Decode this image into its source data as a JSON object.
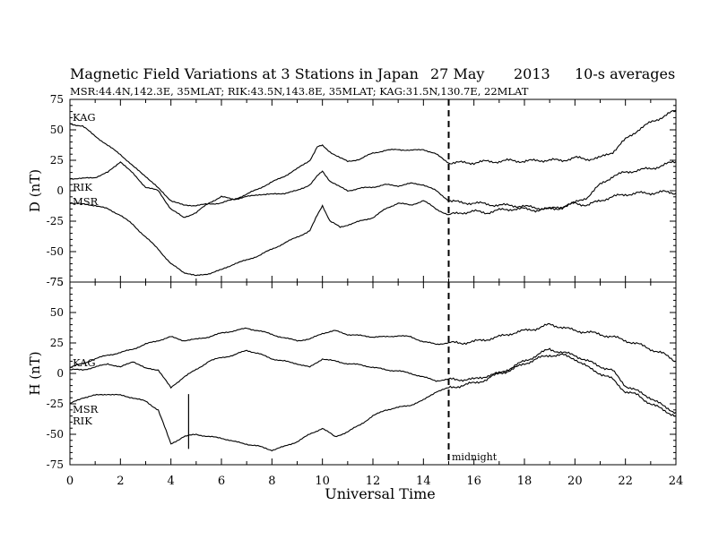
{
  "title": {
    "main": "Magnetic Field Variations at 3 Stations in Japan",
    "date": "27 May",
    "year": "2013",
    "avg": "10-s averages",
    "subtitle": "MSR:44.4N,142.3E, 35MLAT;  RIK:43.5N,143.8E, 35MLAT;  KAG:31.5N,130.7E, 22MLAT"
  },
  "chart_data": [
    {
      "type": "line",
      "panel": "D",
      "ylabel": "D (nT)",
      "ylim": [
        -75,
        75
      ],
      "yticks": [
        "75",
        "50",
        "25",
        "0",
        "-25",
        "-50",
        "-75"
      ],
      "xlim": [
        0,
        24
      ],
      "series": [
        {
          "name": "KAG",
          "label": "KAG",
          "x": [
            0,
            0.5,
            1,
            1.5,
            2,
            2.5,
            3,
            3.5,
            4,
            4.5,
            5,
            5.5,
            6,
            6.5,
            7,
            7.5,
            8,
            8.5,
            9,
            9.5,
            9.8,
            10,
            10.3,
            10.7,
            11,
            11.5,
            12,
            12.5,
            13,
            13.5,
            14,
            14.5,
            15,
            15.5,
            16,
            16.5,
            17,
            17.5,
            18,
            18.5,
            19,
            19.5,
            20,
            20.5,
            21,
            21.5,
            22,
            22.5,
            23,
            23.5,
            24
          ],
          "y": [
            55,
            53,
            45,
            37,
            30,
            20,
            12,
            2,
            -8,
            -12,
            -12,
            -11,
            -10,
            -7,
            -3,
            2,
            7,
            12,
            18,
            25,
            36,
            37,
            32,
            27,
            24,
            26,
            31,
            33,
            34,
            33,
            34,
            30,
            23,
            23,
            23,
            24,
            24,
            25,
            24,
            25,
            25,
            25,
            27,
            26,
            27,
            32,
            42,
            50,
            56,
            61,
            66
          ]
        },
        {
          "name": "RIK",
          "label": "RIK",
          "x": [
            0,
            0.5,
            1,
            1.5,
            2,
            2.5,
            3,
            3.5,
            4,
            4.5,
            5,
            5.5,
            6,
            6.5,
            7,
            7.5,
            8,
            8.5,
            9,
            9.5,
            9.8,
            10,
            10.3,
            10.7,
            11,
            11.5,
            12,
            12.5,
            13,
            13.5,
            14,
            14.5,
            15,
            15.5,
            16,
            16.5,
            17,
            17.5,
            18,
            18.5,
            19,
            19.5,
            20,
            20.5,
            21,
            21.5,
            22,
            22.5,
            23,
            23.5,
            24
          ],
          "y": [
            10,
            10,
            11,
            15,
            24,
            14,
            3,
            0,
            -15,
            -22,
            -18,
            -10,
            -5,
            -7,
            -5,
            -3,
            -3,
            -2,
            0,
            5,
            12,
            16,
            8,
            3,
            0,
            2,
            3,
            5,
            4,
            6,
            5,
            0,
            -8,
            -10,
            -10,
            -11,
            -12,
            -12,
            -13,
            -14,
            -15,
            -13,
            -10,
            -5,
            5,
            12,
            15,
            17,
            18,
            21,
            24
          ]
        },
        {
          "name": "MSR",
          "label": "MSR",
          "x": [
            0,
            0.5,
            1,
            1.5,
            2,
            2.5,
            3,
            3.5,
            4,
            4.5,
            4.7,
            5,
            5.5,
            6,
            6.5,
            7,
            7.5,
            8,
            8.5,
            9,
            9.5,
            9.8,
            10,
            10.3,
            10.7,
            11,
            11.5,
            12,
            12.5,
            13,
            13.5,
            14,
            14.5,
            15,
            15.5,
            16,
            16.5,
            17,
            17.5,
            18,
            18.5,
            19,
            19.5,
            20,
            20.5,
            21,
            21.5,
            22,
            22.5,
            23,
            23.5,
            24
          ],
          "y": [
            -10,
            -11,
            -12,
            -15,
            -20,
            -28,
            -38,
            -48,
            -60,
            -67,
            -68,
            -70,
            -68,
            -65,
            -60,
            -57,
            -53,
            -48,
            -43,
            -38,
            -33,
            -20,
            -12,
            -25,
            -30,
            -28,
            -25,
            -22,
            -15,
            -10,
            -12,
            -8,
            -15,
            -20,
            -18,
            -17,
            -18,
            -16,
            -15,
            -15,
            -16,
            -15,
            -14,
            -10,
            -12,
            -8,
            -5,
            -3,
            -2,
            -2,
            -1,
            -2
          ]
        }
      ]
    },
    {
      "type": "line",
      "panel": "H",
      "ylabel": "H (nT)",
      "ylim": [
        -75,
        75
      ],
      "yticks": [
        "75",
        "50",
        "25",
        "0",
        "-25",
        "-50",
        "-75"
      ],
      "xlim": [
        0,
        24
      ],
      "xticks": [
        "0",
        "2",
        "4",
        "6",
        "8",
        "10",
        "12",
        "14",
        "16",
        "18",
        "20",
        "22",
        "24"
      ],
      "xlabel": "Universal Time",
      "annotation": "midnight",
      "midnight_ut": 15,
      "series": [
        {
          "name": "KAG",
          "label": "KAG",
          "x": [
            0,
            0.5,
            1,
            1.5,
            2,
            2.5,
            3,
            3.5,
            4,
            4.5,
            5,
            5.5,
            6,
            6.5,
            7,
            7.5,
            8,
            8.5,
            9,
            9.5,
            10,
            10.5,
            11,
            11.5,
            12,
            12.5,
            13,
            13.5,
            14,
            14.5,
            15,
            15.5,
            16,
            16.5,
            17,
            17.5,
            18,
            18.5,
            19,
            19.5,
            20,
            20.5,
            21,
            21.5,
            22,
            22.5,
            23,
            23.5,
            24
          ],
          "y": [
            5,
            8,
            12,
            15,
            17,
            20,
            24,
            27,
            30,
            27,
            28,
            30,
            33,
            35,
            37,
            35,
            32,
            29,
            27,
            28,
            33,
            35,
            32,
            31,
            30,
            30,
            31,
            30,
            26,
            24,
            25,
            25,
            26,
            28,
            30,
            33,
            35,
            37,
            40,
            38,
            35,
            34,
            32,
            30,
            27,
            24,
            20,
            16,
            10
          ]
        },
        {
          "name": "MSR",
          "label": "MSR",
          "x": [
            0,
            0.5,
            1,
            1.5,
            2,
            2.5,
            3,
            3.5,
            4,
            4.5,
            5,
            5.5,
            6,
            6.5,
            7,
            7.5,
            8,
            8.5,
            9,
            9.5,
            10,
            10.5,
            11,
            11.5,
            12,
            12.5,
            13,
            13.5,
            14,
            14.5,
            15,
            15.5,
            16,
            16.5,
            17,
            17.5,
            18,
            18.5,
            19,
            19.5,
            20,
            20.5,
            21,
            21.5,
            22,
            22.5,
            23,
            23.5,
            24
          ],
          "y": [
            3,
            3,
            5,
            8,
            5,
            10,
            4,
            3,
            -12,
            -3,
            3,
            10,
            13,
            15,
            19,
            16,
            12,
            10,
            8,
            5,
            12,
            10,
            8,
            7,
            5,
            3,
            2,
            0,
            -3,
            -6,
            -5,
            -5,
            -5,
            -2,
            0,
            5,
            10,
            15,
            20,
            17,
            15,
            10,
            6,
            2,
            -10,
            -15,
            -20,
            -27,
            -32
          ]
        },
        {
          "name": "RIK",
          "label": "RIK",
          "x": [
            0,
            0.5,
            1,
            1.5,
            2,
            2.5,
            3,
            3.5,
            4,
            4.5,
            5,
            5.5,
            6,
            6.5,
            7,
            7.5,
            8,
            8.5,
            9,
            9.5,
            10,
            10.5,
            11,
            11.5,
            12,
            12.5,
            13,
            13.5,
            14,
            14.5,
            15,
            15.5,
            16,
            16.5,
            17,
            17.5,
            18,
            18.5,
            19,
            19.5,
            20,
            20.5,
            21,
            21.5,
            22,
            22.5,
            23,
            23.5,
            24
          ],
          "y": [
            -25,
            -20,
            -18,
            -17,
            -18,
            -20,
            -23,
            -30,
            -58,
            -52,
            -50,
            -52,
            -53,
            -56,
            -58,
            -60,
            -63,
            -60,
            -56,
            -50,
            -45,
            -52,
            -48,
            -42,
            -35,
            -30,
            -28,
            -26,
            -22,
            -15,
            -12,
            -10,
            -8,
            -5,
            0,
            3,
            8,
            12,
            15,
            15,
            12,
            5,
            0,
            -5,
            -15,
            -18,
            -25,
            -30,
            -35
          ]
        }
      ]
    }
  ]
}
